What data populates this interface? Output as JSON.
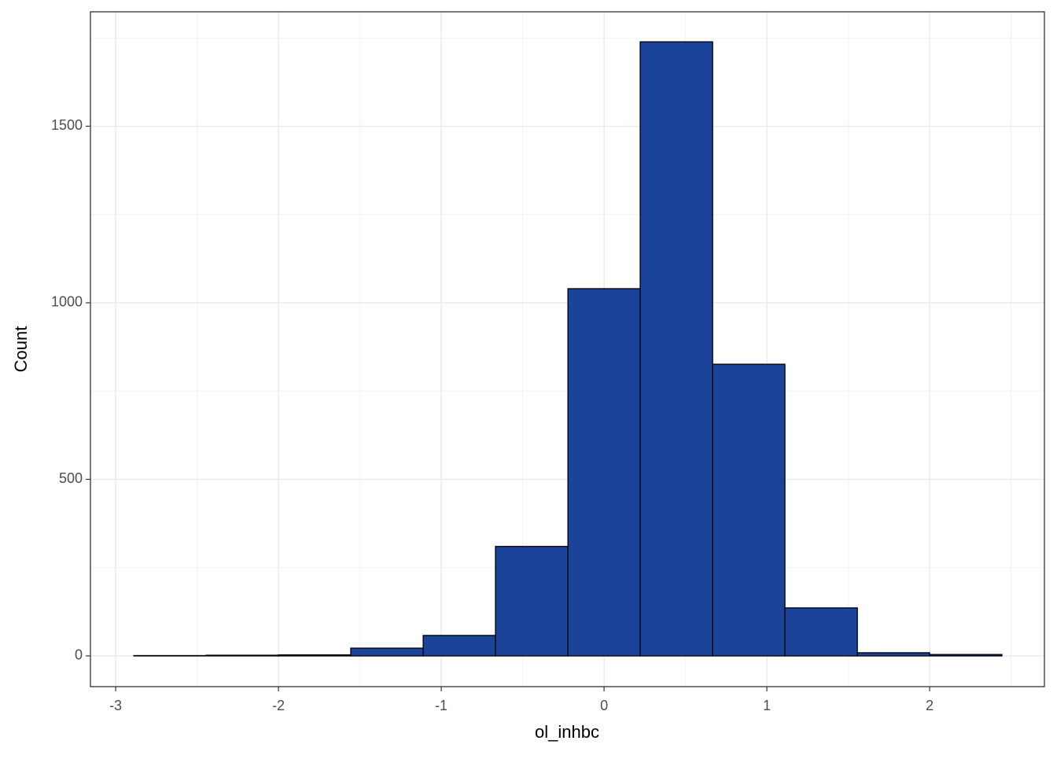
{
  "chart_data": {
    "type": "histogram",
    "x_label": "ol_inhbc",
    "y_label": "Count",
    "bins": [
      -2.889,
      -2.444,
      -2.0,
      -1.556,
      -1.111,
      -0.667,
      -0.222,
      0.222,
      0.667,
      1.111,
      1.556,
      2.0,
      2.444
    ],
    "values": [
      1,
      2,
      3,
      22,
      58,
      310,
      1040,
      1739,
      826,
      136,
      9,
      4
    ],
    "color": "#1a4399",
    "edge_color": "#000000",
    "xlim": [
      -3.155,
      2.705
    ],
    "ylim": [
      -87,
      1824
    ],
    "xticks": [
      -3,
      -2,
      -1,
      0,
      1,
      2
    ],
    "yticks": [
      0,
      500,
      1000,
      1500
    ],
    "grid": true
  }
}
